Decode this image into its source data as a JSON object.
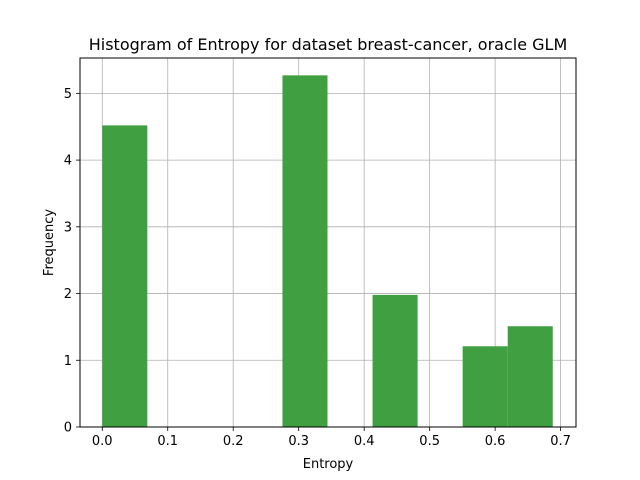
{
  "chart_data": {
    "type": "bar",
    "title": "Histogram of Entropy for dataset breast-cancer, oracle GLM",
    "xlabel": "Entropy",
    "ylabel": "Frequency",
    "xlim": [
      -0.034,
      0.7235
    ],
    "ylim": [
      0,
      5.53
    ],
    "xticks": [
      0.0,
      0.1,
      0.2,
      0.3,
      0.4,
      0.5,
      0.6,
      0.7
    ],
    "xtick_labels": [
      "0.0",
      "0.1",
      "0.2",
      "0.3",
      "0.4",
      "0.5",
      "0.6",
      "0.7"
    ],
    "yticks": [
      0,
      1,
      2,
      3,
      4,
      5
    ],
    "ytick_labels": [
      "0",
      "1",
      "2",
      "3",
      "4",
      "5"
    ],
    "grid": true,
    "bar_color": "#409f40",
    "bins": [
      {
        "x0": 0.0,
        "x1": 0.0688,
        "value": 4.52
      },
      {
        "x0": 0.0688,
        "x1": 0.1376,
        "value": 0
      },
      {
        "x0": 0.1376,
        "x1": 0.2064,
        "value": 0
      },
      {
        "x0": 0.2064,
        "x1": 0.2752,
        "value": 0
      },
      {
        "x0": 0.2752,
        "x1": 0.344,
        "value": 5.27
      },
      {
        "x0": 0.344,
        "x1": 0.4128,
        "value": 0
      },
      {
        "x0": 0.4128,
        "x1": 0.4816,
        "value": 1.98
      },
      {
        "x0": 0.4816,
        "x1": 0.5504,
        "value": 0
      },
      {
        "x0": 0.5504,
        "x1": 0.6192,
        "value": 1.21
      },
      {
        "x0": 0.6192,
        "x1": 0.688,
        "value": 1.51
      }
    ]
  }
}
